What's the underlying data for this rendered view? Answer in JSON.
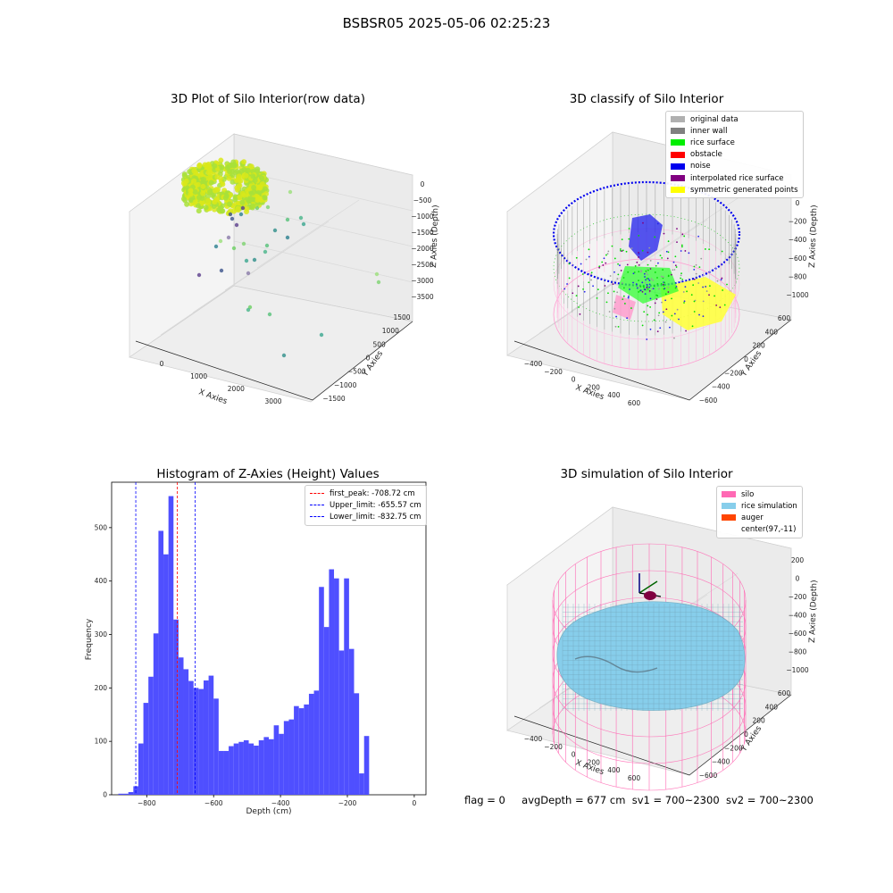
{
  "figure_title": "BSBSR05 2025-05-06 02:25:23",
  "panels": {
    "raw": {
      "title": "3D Plot of Silo Interior(row data)",
      "xlabel": "X Axies",
      "ylabel": "Y Axies",
      "zlabel": "Z Axies (Depth)",
      "xticks": [
        "0",
        "1000",
        "2000",
        "3000"
      ],
      "yticks": [
        "1500",
        "1000",
        "500",
        "0",
        "−500",
        "−1000",
        "−1500"
      ],
      "zticks": [
        "0",
        "−500",
        "−1000",
        "−1500",
        "−2000",
        "−2500",
        "−3000",
        "−3500"
      ]
    },
    "classify": {
      "title": "3D classify of Silo Interior",
      "xlabel": "X Axies",
      "ylabel": "Y Axies",
      "zlabel": "Z Axies (Depth)",
      "xticks": [
        "−400",
        "−200",
        "0",
        "200",
        "400",
        "600"
      ],
      "yticks": [
        "600",
        "400",
        "200",
        "0",
        "−200",
        "−400",
        "−600"
      ],
      "zticks": [
        "0",
        "−200",
        "−400",
        "−600",
        "−800",
        "−1000"
      ],
      "legend": [
        {
          "label": "original data",
          "color": "#b0b0b0"
        },
        {
          "label": "inner wall",
          "color": "#808080"
        },
        {
          "label": "rice surface",
          "color": "#00ee00"
        },
        {
          "label": "obstacle",
          "color": "#ff0000"
        },
        {
          "label": "noise",
          "color": "#0000ee"
        },
        {
          "label": "interpolated rice surface",
          "color": "#800080"
        },
        {
          "label": "symmetric generated points",
          "color": "#ffff00"
        }
      ]
    },
    "simulation": {
      "title": "3D simulation of Silo Interior",
      "xlabel": "X Axies",
      "ylabel": "Y Axies",
      "zlabel": "Z Axies (Depth)",
      "xticks": [
        "−400",
        "−200",
        "0",
        "200",
        "400",
        "600"
      ],
      "yticks": [
        "600",
        "400",
        "200",
        "0",
        "−200",
        "−400",
        "−600"
      ],
      "zticks": [
        "200",
        "0",
        "−200",
        "−400",
        "−600",
        "−800",
        "−1000"
      ],
      "legend": [
        {
          "label": "silo",
          "color": "#ff69b4"
        },
        {
          "label": "rice simulation",
          "color": "#87ceeb"
        },
        {
          "label": "auger",
          "color": "#ff4500"
        },
        {
          "label": "center(97,-11)",
          "color": "#ffffff"
        }
      ]
    }
  },
  "status": {
    "flag": "flag = 0",
    "avg_depth": "avgDepth = 677 cm",
    "sv1": "sv1 = 700~2300",
    "sv2": "sv2 = 700~2300"
  },
  "chart_data": {
    "type": "bar",
    "title": "Histogram of Z-Axies (Height) Values",
    "xlabel": "Depth (cm)",
    "ylabel": "Frequency",
    "xlim": [
      -905,
      35
    ],
    "ylim": [
      0,
      585
    ],
    "bin_width": 15,
    "bin_start": -885,
    "counts": [
      2,
      2,
      5,
      16,
      96,
      172,
      221,
      302,
      494,
      450,
      559,
      328,
      257,
      235,
      213,
      200,
      198,
      214,
      223,
      180,
      82,
      82,
      91,
      96,
      99,
      102,
      96,
      92,
      102,
      108,
      104,
      130,
      114,
      138,
      141,
      166,
      162,
      169,
      189,
      195,
      389,
      314,
      422,
      405,
      270,
      405,
      273,
      190,
      40,
      110
    ],
    "bar_color": "#4b4bff",
    "xticks": [
      -800,
      -600,
      -400,
      -200,
      0
    ],
    "yticks": [
      0,
      100,
      200,
      300,
      400,
      500
    ],
    "vlines": [
      {
        "label": "first_peak: -708.72 cm",
        "x": -708.72,
        "color": "#ff0000"
      },
      {
        "label": "Upper_limit: -655.57 cm",
        "x": -655.57,
        "color": "#0000ff"
      },
      {
        "label": "Lower_limit: -832.75 cm",
        "x": -832.75,
        "color": "#0000ff"
      }
    ],
    "legend_position": "top-right",
    "grid": false
  }
}
